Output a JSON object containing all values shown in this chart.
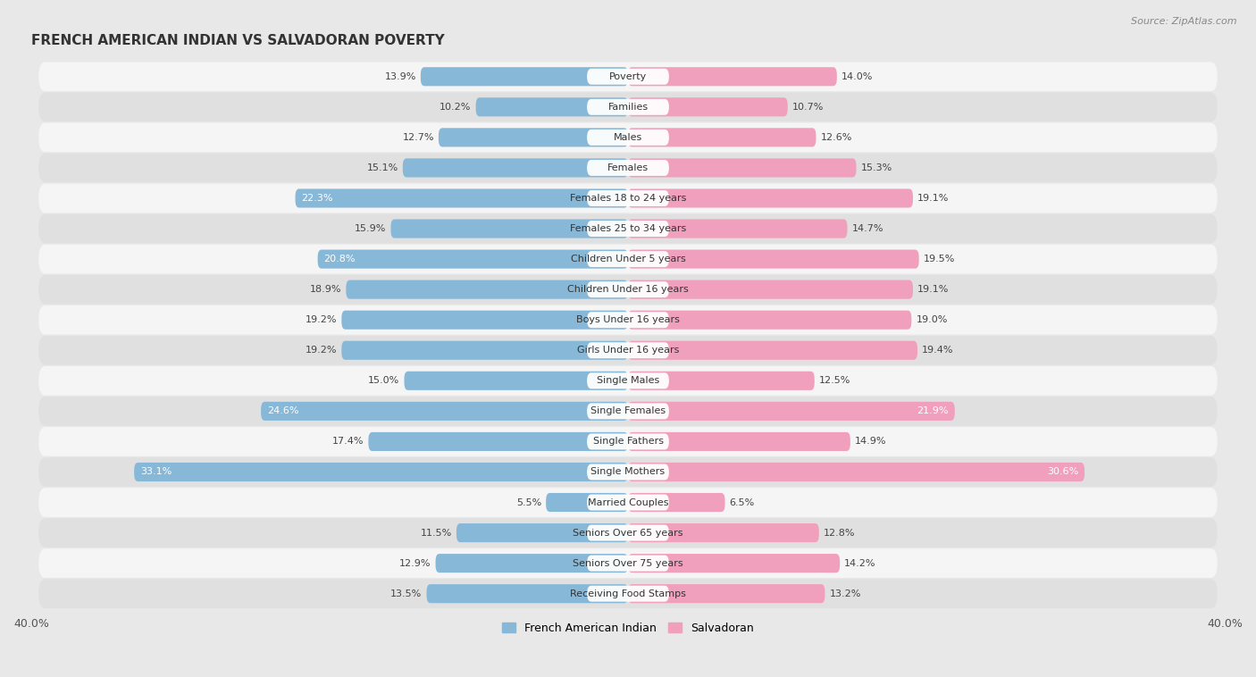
{
  "title": "FRENCH AMERICAN INDIAN VS SALVADORAN POVERTY",
  "source": "Source: ZipAtlas.com",
  "categories": [
    "Poverty",
    "Families",
    "Males",
    "Females",
    "Females 18 to 24 years",
    "Females 25 to 34 years",
    "Children Under 5 years",
    "Children Under 16 years",
    "Boys Under 16 years",
    "Girls Under 16 years",
    "Single Males",
    "Single Females",
    "Single Fathers",
    "Single Mothers",
    "Married Couples",
    "Seniors Over 65 years",
    "Seniors Over 75 years",
    "Receiving Food Stamps"
  ],
  "left_values": [
    13.9,
    10.2,
    12.7,
    15.1,
    22.3,
    15.9,
    20.8,
    18.9,
    19.2,
    19.2,
    15.0,
    24.6,
    17.4,
    33.1,
    5.5,
    11.5,
    12.9,
    13.5
  ],
  "right_values": [
    14.0,
    10.7,
    12.6,
    15.3,
    19.1,
    14.7,
    19.5,
    19.1,
    19.0,
    19.4,
    12.5,
    21.9,
    14.9,
    30.6,
    6.5,
    12.8,
    14.2,
    13.2
  ],
  "left_color": "#88b8d8",
  "right_color": "#f0a0bc",
  "left_label": "French American Indian",
  "right_label": "Salvadoran",
  "xlim": 40.0,
  "bg_color": "#e8e8e8",
  "row_light_color": "#f5f5f5",
  "row_dark_color": "#e0e0e0",
  "title_fontsize": 11,
  "source_fontsize": 8,
  "cat_fontsize": 8,
  "value_fontsize": 8,
  "bar_height": 0.62,
  "highlight_threshold": 20.0
}
